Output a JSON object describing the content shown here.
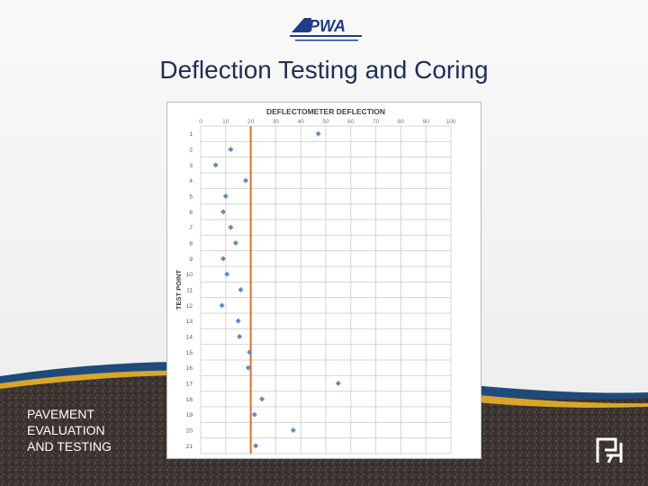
{
  "slide": {
    "title": "Deflection Testing and Coring",
    "logo_text": "APWA",
    "footer_lines": [
      "PAVEMENT",
      "EVALUATION",
      "AND TESTING"
    ]
  },
  "colors": {
    "title": "#1f2d5a",
    "logo_blue": "#1f3c88",
    "marker": "#5b8ccb",
    "threshold_line": "#e07020",
    "footer_band_gold": "#d9a62b",
    "footer_band_blue": "#1f4b7a"
  },
  "chart_data": {
    "type": "scatter",
    "title": "DEFLECTOMETER DEFLECTION",
    "xlabel": "",
    "ylabel": "TEST POINT",
    "xlim": [
      0,
      100
    ],
    "x_ticks": [
      "0",
      "10",
      "20",
      "30",
      "40",
      "50",
      "60",
      "70",
      "80",
      "90",
      "100"
    ],
    "y_categories": [
      "1",
      "2",
      "3",
      "4",
      "5",
      "6",
      "7",
      "8",
      "9",
      "10",
      "11",
      "12",
      "13",
      "14",
      "15",
      "16",
      "17",
      "18",
      "19",
      "20",
      "21"
    ],
    "grid": true,
    "x_axis_position": "top",
    "reference_line_x": 20,
    "points": [
      {
        "test_point": 1,
        "deflection": 47
      },
      {
        "test_point": 2,
        "deflection": 12
      },
      {
        "test_point": 3,
        "deflection": 6
      },
      {
        "test_point": 4,
        "deflection": 18
      },
      {
        "test_point": 5,
        "deflection": 10
      },
      {
        "test_point": 6,
        "deflection": 9
      },
      {
        "test_point": 7,
        "deflection": 12
      },
      {
        "test_point": 8,
        "deflection": 14
      },
      {
        "test_point": 9,
        "deflection": 9
      },
      {
        "test_point": 10,
        "deflection": 10.5
      },
      {
        "test_point": 11,
        "deflection": 16
      },
      {
        "test_point": 12,
        "deflection": 8.5
      },
      {
        "test_point": 13,
        "deflection": 15
      },
      {
        "test_point": 14,
        "deflection": 15.5
      },
      {
        "test_point": 15,
        "deflection": 19.5
      },
      {
        "test_point": 16,
        "deflection": 19
      },
      {
        "test_point": 17,
        "deflection": 55
      },
      {
        "test_point": 18,
        "deflection": 24.5
      },
      {
        "test_point": 19,
        "deflection": 21.5
      },
      {
        "test_point": 20,
        "deflection": 37
      },
      {
        "test_point": 21,
        "deflection": 22
      }
    ]
  }
}
